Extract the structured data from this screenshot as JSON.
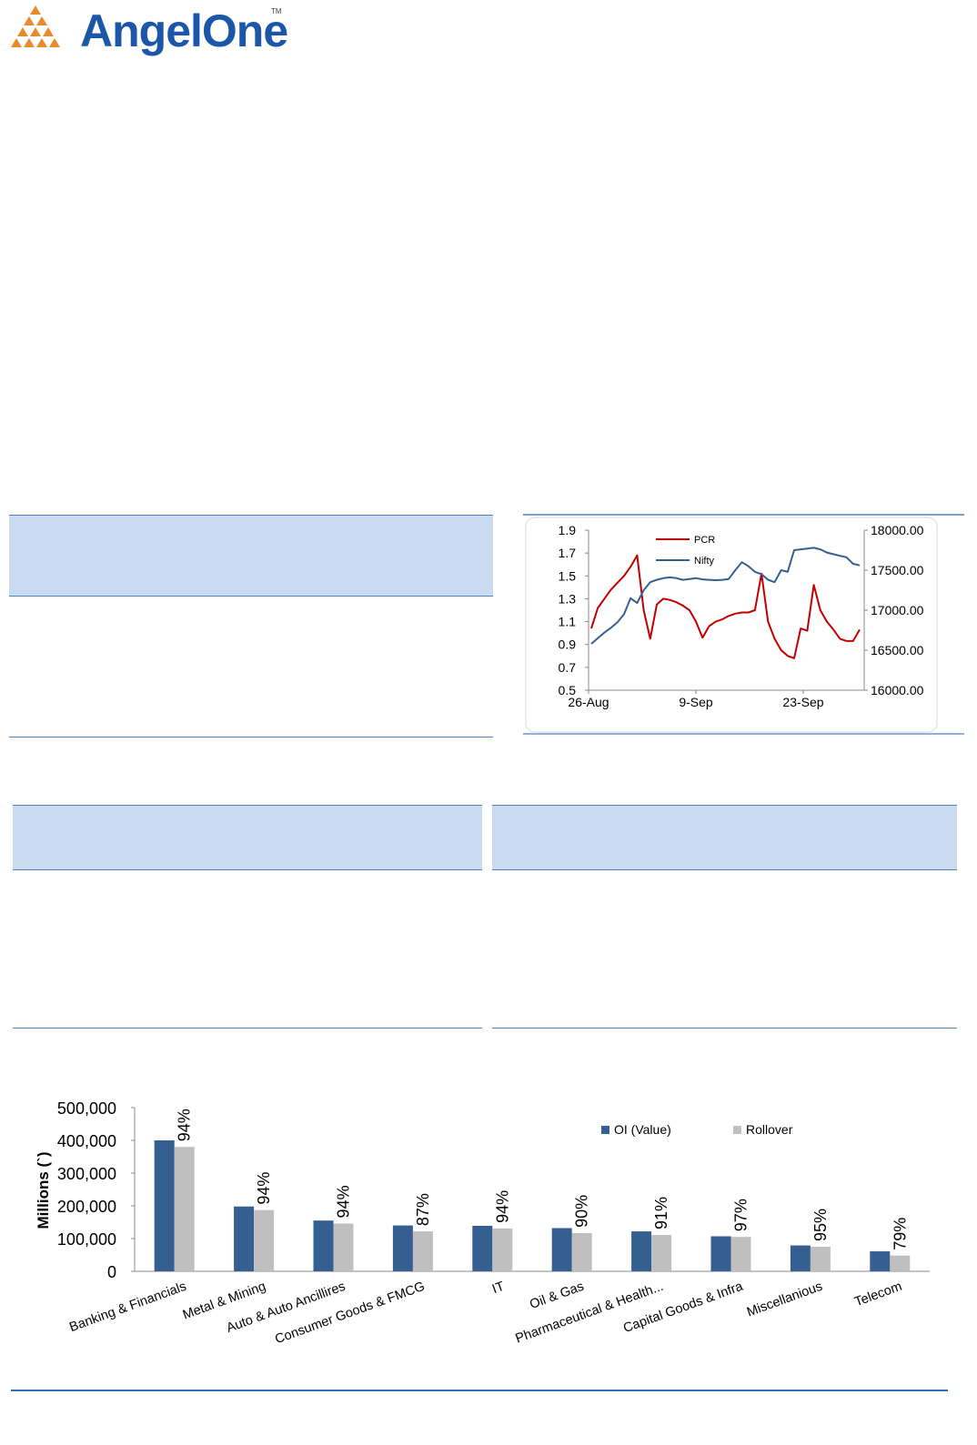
{
  "logo": {
    "name": "AngelOne",
    "tm": "TM"
  },
  "charts": [
    {
      "type": "line",
      "series": [
        {
          "name": "PCR",
          "color": "#c00000",
          "axis": "left",
          "values": [
            1.04,
            1.22,
            1.3,
            1.38,
            1.44,
            1.5,
            1.58,
            1.68,
            1.2,
            0.95,
            1.25,
            1.3,
            1.29,
            1.27,
            1.24,
            1.2,
            1.1,
            0.96,
            1.06,
            1.1,
            1.12,
            1.15,
            1.17,
            1.18,
            1.18,
            1.2,
            1.52,
            1.1,
            0.95,
            0.85,
            0.8,
            0.78,
            1.04,
            1.02,
            1.42,
            1.2,
            1.1,
            1.03,
            0.95,
            0.93,
            0.93,
            1.03
          ]
        },
        {
          "name": "Nifty",
          "color": "#365f91",
          "axis": "right",
          "values": [
            16580,
            16650,
            16720,
            16780,
            16850,
            16950,
            17150,
            17090,
            17250,
            17350,
            17380,
            17400,
            17410,
            17400,
            17380,
            17390,
            17400,
            17385,
            17380,
            17375,
            17380,
            17390,
            17500,
            17600,
            17550,
            17480,
            17450,
            17380,
            17350,
            17500,
            17480,
            17750,
            17760,
            17770,
            17780,
            17760,
            17720,
            17700,
            17680,
            17660,
            17580,
            17560
          ]
        }
      ],
      "x_ticks": [
        "26-Aug",
        "9-Sep",
        "23-Sep"
      ],
      "y_left_ticks": [
        "1.9",
        "1.7",
        "1.5",
        "1.3",
        "1.1",
        "0.9",
        "0.7",
        "0.5"
      ],
      "y_right_ticks": [
        "18000.00",
        "17500.00",
        "17000.00",
        "16500.00",
        "16000.00"
      ],
      "ylim_left": [
        0.5,
        1.9
      ],
      "ylim_right": [
        16000,
        18000
      ],
      "legend_position": "top-left"
    }
  ],
  "chart_data": {
    "type": "bar",
    "categories": [
      "Banking & Financials",
      "Metal & Mining",
      "Auto & Auto Ancillires",
      "Consumer Goods & FMCG",
      "IT",
      "Oil & Gas",
      "Pharmaceutical & Health...",
      "Capital Goods & Infra",
      "Miscellanious",
      "Telecom"
    ],
    "series": [
      {
        "name": "OI (Value)",
        "color": "#365f91",
        "values": [
          400000,
          198000,
          155000,
          140000,
          139000,
          132000,
          122000,
          107000,
          79000,
          61000
        ]
      },
      {
        "name": "Rollover",
        "color": "#bfbfbf",
        "values": [
          380000,
          187000,
          146000,
          122000,
          131000,
          117000,
          111000,
          105000,
          75000,
          48000
        ]
      }
    ],
    "percent_labels": [
      "94%",
      "94%",
      "94%",
      "87%",
      "94%",
      "90%",
      "91%",
      "97%",
      "95%",
      "79%"
    ],
    "ylabel": "Millions (`)",
    "y_ticks": [
      "500,000",
      "400,000",
      "300,000",
      "200,000",
      "100,000",
      "0"
    ],
    "ylim": [
      0,
      500000
    ],
    "legend_position": "top-right"
  }
}
